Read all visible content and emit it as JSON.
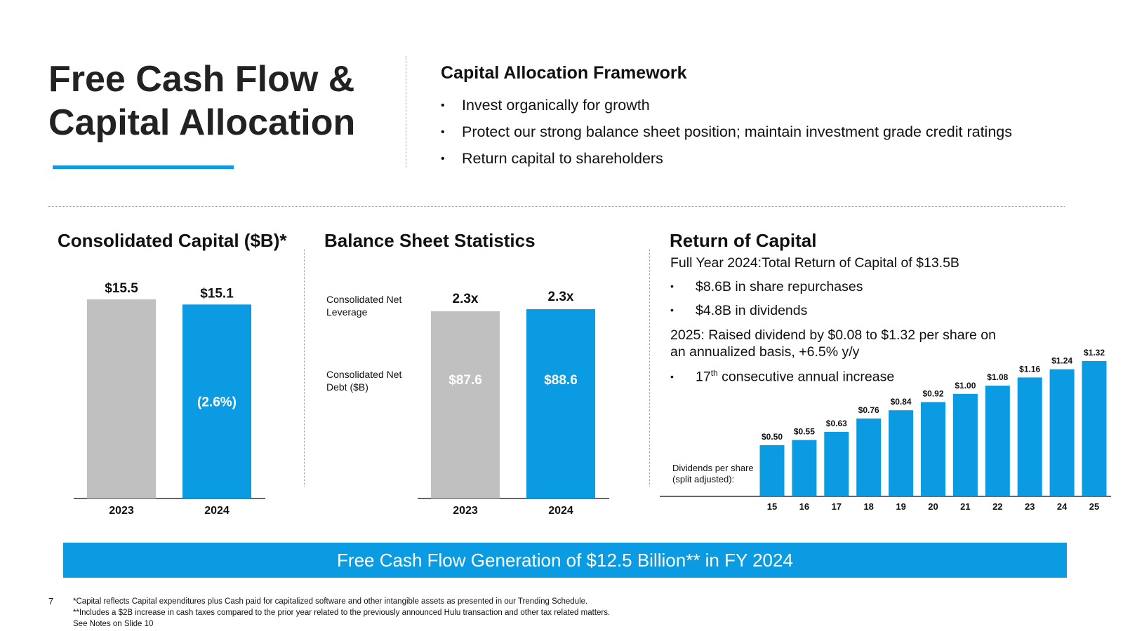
{
  "header": {
    "title_line1": "Free Cash Flow &",
    "title_line2": "Capital Allocation"
  },
  "framework": {
    "heading": "Capital Allocation Framework",
    "bullets": [
      "Invest organically for growth",
      "Protect our strong balance sheet position; maintain investment grade credit ratings",
      "Return capital to shareholders"
    ]
  },
  "sections": {
    "capital_title": "Consolidated Capital ($B)*",
    "balance_title": "Balance Sheet Statistics",
    "return_title": "Return of Capital"
  },
  "balance_labels": {
    "leverage": "Consolidated Net Leverage",
    "debt": "Consolidated Net Debt ($B)"
  },
  "return_of_capital": {
    "summary": "Full Year 2024:Total Return of Capital of $13.5B",
    "bullet1": "$8.6B in share repurchases",
    "bullet2": "$4.8B in dividends",
    "raise_line1": "2025: Raised dividend by $0.08 to $1.32 per share on",
    "raise_line2": "an annualized basis, +6.5% y/y",
    "consec_number": "17",
    "consec_sup": "th",
    "consec_text": " consecutive annual increase",
    "dps_label_line1": "Dividends per share",
    "dps_label_line2": "(split adjusted):"
  },
  "banner": "Free Cash Flow Generation of $12.5 Billion** in FY 2024",
  "footer": {
    "page_number": "7",
    "note1": "*Capital reflects Capital expenditures plus Cash paid for capitalized software and other intangible assets as presented in our Trending Schedule.",
    "note2": "**Includes a $2B increase in cash taxes compared to the prior year related to the previously announced Hulu transaction and other tax related matters.",
    "note3": "See Notes on Slide 10"
  },
  "colors": {
    "accent_blue": "#0a9be3",
    "gray_bar": "#c0c0c0"
  },
  "chart_data": [
    {
      "type": "bar",
      "title": "Consolidated Capital ($B)*",
      "categories": [
        "2023",
        "2024"
      ],
      "values": [
        15.5,
        15.1
      ],
      "value_labels": [
        "$15.5",
        "$15.1"
      ],
      "change_label": "(2.6%)",
      "bar_colors": [
        "#c0c0c0",
        "#0a9be3"
      ],
      "ylim": [
        0,
        15.5
      ]
    },
    {
      "type": "bar",
      "title": "Balance Sheet Statistics",
      "categories": [
        "2023",
        "2024"
      ],
      "values": [
        87.6,
        88.6
      ],
      "value_labels": [
        "$87.6",
        "$88.6"
      ],
      "leverage_labels": [
        "2.3x",
        "2.3x"
      ],
      "bar_colors": [
        "#c0c0c0",
        "#0a9be3"
      ],
      "ylim": [
        0,
        88.6
      ]
    },
    {
      "type": "bar",
      "title": "Dividends per share (split adjusted):",
      "categories": [
        "15",
        "16",
        "17",
        "18",
        "19",
        "20",
        "21",
        "22",
        "23",
        "24",
        "25"
      ],
      "values": [
        0.5,
        0.55,
        0.63,
        0.76,
        0.84,
        0.92,
        1.0,
        1.08,
        1.16,
        1.24,
        1.32
      ],
      "value_labels": [
        "$0.50",
        "$0.55",
        "$0.63",
        "$0.76",
        "$0.84",
        "$0.92",
        "$1.00",
        "$1.08",
        "$1.16",
        "$1.24",
        "$1.32"
      ],
      "bar_color": "#0a9be3"
    }
  ]
}
